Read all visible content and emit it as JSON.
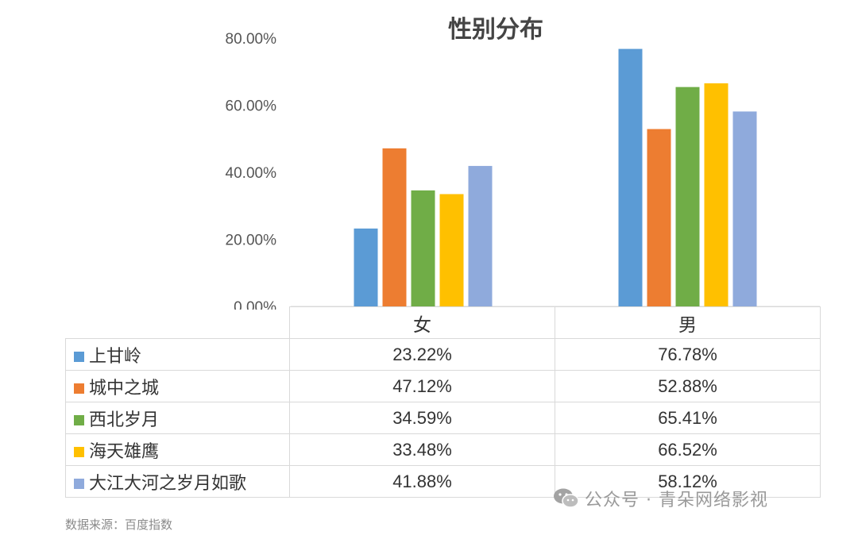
{
  "chart_data": {
    "type": "bar",
    "title": "性别分布",
    "categories": [
      "女",
      "男"
    ],
    "ylim": [
      0,
      80
    ],
    "yticks": [
      "0.00%",
      "20.00%",
      "40.00%",
      "60.00%",
      "80.00%"
    ],
    "grid": false,
    "legend_placement": "data-table",
    "series": [
      {
        "name": "上甘岭",
        "color": "#5b9bd5",
        "values": [
          23.22,
          76.78
        ],
        "labels": [
          "23.22%",
          "76.78%"
        ]
      },
      {
        "name": "城中之城",
        "color": "#ed7d31",
        "values": [
          47.12,
          52.88
        ],
        "labels": [
          "47.12%",
          "52.88%"
        ]
      },
      {
        "name": "西北岁月",
        "color": "#70ad47",
        "values": [
          34.59,
          65.41
        ],
        "labels": [
          "34.59%",
          "65.41%"
        ]
      },
      {
        "name": "海天雄鹰",
        "color": "#ffc000",
        "values": [
          33.48,
          66.52
        ],
        "labels": [
          "33.48%",
          "66.52%"
        ]
      },
      {
        "name": "大江大河之岁月如歌",
        "color": "#8faadc",
        "values": [
          41.88,
          58.12
        ],
        "labels": [
          "41.88%",
          "58.12%"
        ]
      }
    ]
  },
  "source": "数据来源：百度指数",
  "watermark": "公众号 · 青朵网络影视"
}
